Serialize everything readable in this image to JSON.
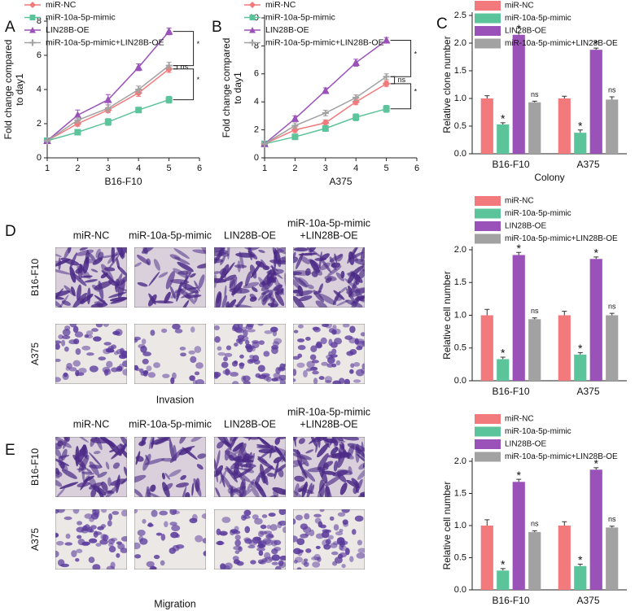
{
  "panel_labels": [
    "A",
    "B",
    "C",
    "D",
    "E"
  ],
  "chart_data": [
    {
      "type": "line",
      "x_label": "B16-F10",
      "y_label": [
        "Fold change compared",
        "to day1"
      ],
      "x": [
        1,
        2,
        3,
        4,
        5
      ],
      "xlim": [
        1,
        6
      ],
      "xticks": [
        1,
        2,
        3,
        4,
        5,
        6
      ],
      "ylim": [
        0,
        8
      ],
      "yticks": [
        0,
        2,
        4,
        6,
        8
      ],
      "series": [
        {
          "name": "miR-NC",
          "color": "#f27a7c",
          "marker": "diamond",
          "values": [
            1,
            2.0,
            2.8,
            3.8,
            5.2
          ],
          "errors": [
            0.05,
            0.15,
            0.15,
            0.2,
            0.2
          ]
        },
        {
          "name": "miR-10a-5p-mimic",
          "color": "#5cc49a",
          "marker": "square",
          "values": [
            1,
            1.5,
            2.1,
            2.8,
            3.4
          ],
          "errors": [
            0.05,
            0.15,
            0.2,
            0.15,
            0.2
          ]
        },
        {
          "name": "LIN28B-OE",
          "color": "#9b52b8",
          "marker": "triangle",
          "values": [
            1,
            2.5,
            3.4,
            5.3,
            7.4
          ],
          "errors": [
            0.05,
            0.3,
            0.3,
            0.2,
            0.2
          ]
        },
        {
          "name": "miR-10a-5p-mimic+LIN28B-OE",
          "color": "#a2a2a2",
          "marker": "plus",
          "values": [
            1,
            2.2,
            2.9,
            4.0,
            5.4
          ],
          "errors": [
            0.05,
            0.15,
            0.2,
            0.2,
            0.2
          ]
        }
      ],
      "annotations": [
        "*",
        "ns",
        "*"
      ]
    },
    {
      "type": "line",
      "x_label": "A375",
      "y_label": [
        "Fold change compared",
        "to day1"
      ],
      "x": [
        1,
        2,
        3,
        4,
        5
      ],
      "xlim": [
        1,
        6
      ],
      "xticks": [
        1,
        2,
        3,
        4,
        5,
        6
      ],
      "ylim": [
        0,
        10
      ],
      "yticks": [
        0,
        2,
        4,
        6,
        8,
        10
      ],
      "series": [
        {
          "name": "miR-NC",
          "color": "#f27a7c",
          "marker": "diamond",
          "values": [
            1,
            2.0,
            2.5,
            4.0,
            5.3
          ],
          "errors": [
            0.05,
            0.2,
            0.2,
            0.2,
            0.2
          ]
        },
        {
          "name": "miR-10a-5p-mimic",
          "color": "#5cc49a",
          "marker": "square",
          "values": [
            1,
            1.5,
            2.1,
            2.9,
            3.5
          ],
          "errors": [
            0.05,
            0.15,
            0.2,
            0.25,
            0.25
          ]
        },
        {
          "name": "LIN28B-OE",
          "color": "#9b52b8",
          "marker": "triangle",
          "values": [
            1,
            2.8,
            4.8,
            6.8,
            8.4
          ],
          "errors": [
            0.05,
            0.2,
            0.2,
            0.25,
            0.2
          ]
        },
        {
          "name": "miR-10a-5p-mimic+LIN28B-OE",
          "color": "#a2a2a2",
          "marker": "plus",
          "values": [
            1,
            2.3,
            3.2,
            4.3,
            5.8
          ],
          "errors": [
            0.05,
            0.2,
            0.2,
            0.2,
            0.2
          ]
        }
      ],
      "annotations": [
        "*",
        "ns",
        "*"
      ]
    },
    {
      "type": "bar",
      "x_label": "Colony",
      "y_label": "Relative clone number",
      "categories": [
        "B16-F10",
        "A375"
      ],
      "ylim": [
        0,
        2.5
      ],
      "yticks": [
        {
          "value": 0,
          "label": "0.0"
        },
        0.5,
        {
          "value": 1,
          "label": "1.0"
        },
        1.5,
        {
          "value": 2,
          "label": "2.0"
        },
        2.5
      ],
      "series": [
        {
          "name": "miR-NC",
          "color": "#f27a7c",
          "values": [
            1.0,
            1.0
          ],
          "errors": [
            0.05,
            0.04
          ]
        },
        {
          "name": "miR-10a-5p-mimic",
          "color": "#5cc49a",
          "values": [
            0.53,
            0.38
          ],
          "errors": [
            0.03,
            0.05
          ],
          "sig": [
            "*",
            "*"
          ]
        },
        {
          "name": "LIN28B-OE",
          "color": "#9b52b8",
          "values": [
            2.15,
            1.88
          ],
          "errors": [
            0.04,
            0.03
          ],
          "sig": [
            "*",
            "*"
          ]
        },
        {
          "name": "miR-10a-5p-mimic+LIN28B-OE",
          "color": "#a2a2a2",
          "values": [
            0.93,
            0.98
          ],
          "errors": [
            0.02,
            0.05
          ],
          "sig": [
            "ns",
            "ns"
          ]
        }
      ]
    },
    {
      "type": "bar",
      "y_label": "Relative cell number",
      "categories": [
        "B16-F10",
        "A375"
      ],
      "ylim": [
        0,
        2.0
      ],
      "yticks": [
        {
          "value": 0,
          "label": "0.0"
        },
        0.5,
        {
          "value": 1,
          "label": "1.0"
        },
        1.5,
        {
          "value": 2,
          "label": "2.0"
        }
      ],
      "series": [
        {
          "name": "miR-NC",
          "color": "#f27a7c",
          "values": [
            1.0,
            1.0
          ],
          "errors": [
            0.09,
            0.06
          ]
        },
        {
          "name": "miR-10a-5p-mimic",
          "color": "#5cc49a",
          "values": [
            0.33,
            0.4
          ],
          "errors": [
            0.03,
            0.03
          ],
          "sig": [
            "*",
            "*"
          ]
        },
        {
          "name": "LIN28B-OE",
          "color": "#9b52b8",
          "values": [
            1.92,
            1.86
          ],
          "errors": [
            0.04,
            0.03
          ],
          "sig": [
            "*",
            "*"
          ]
        },
        {
          "name": "miR-10a-5p-mimic+LIN28B-OE",
          "color": "#a2a2a2",
          "values": [
            0.94,
            1.0
          ],
          "errors": [
            0.02,
            0.03
          ],
          "sig": [
            "ns",
            "ns"
          ]
        }
      ]
    },
    {
      "type": "bar",
      "y_label": "Relative cell number",
      "categories": [
        "B16-F10",
        "A375"
      ],
      "ylim": [
        0,
        2.0
      ],
      "yticks": [
        {
          "value": 0,
          "label": "0.0"
        },
        0.5,
        {
          "value": 1,
          "label": "1.0"
        },
        1.5,
        {
          "value": 2,
          "label": "2.0"
        }
      ],
      "series": [
        {
          "name": "miR-NC",
          "color": "#f27a7c",
          "values": [
            1.0,
            1.0
          ],
          "errors": [
            0.09,
            0.06
          ]
        },
        {
          "name": "miR-10a-5p-mimic",
          "color": "#5cc49a",
          "values": [
            0.3,
            0.37
          ],
          "errors": [
            0.03,
            0.03
          ],
          "sig": [
            "*",
            "*"
          ]
        },
        {
          "name": "LIN28B-OE",
          "color": "#9b52b8",
          "values": [
            1.68,
            1.87
          ],
          "errors": [
            0.04,
            0.03
          ],
          "sig": [
            "*",
            "*"
          ]
        },
        {
          "name": "miR-10a-5p-mimic+LIN28B-OE",
          "color": "#a2a2a2",
          "values": [
            0.9,
            0.97
          ],
          "errors": [
            0.02,
            0.02
          ],
          "sig": [
            "ns",
            "ns"
          ]
        }
      ]
    }
  ],
  "image_grids": [
    {
      "columns": [
        [
          "miR-NC"
        ],
        [
          "miR-10a-5p-mimic"
        ],
        [
          "LIN28B-OE"
        ],
        [
          "miR-10a-5p-mimic",
          "+LIN28B-OE"
        ]
      ],
      "rows": [
        "B16-F10",
        "A375"
      ],
      "caption": "Invasion"
    },
    {
      "columns": [
        [
          "miR-NC"
        ],
        [
          "miR-10a-5p-mimic"
        ],
        [
          "LIN28B-OE"
        ],
        [
          "miR-10a-5p-mimic",
          "+LIN28B-OE"
        ]
      ],
      "rows": [
        "B16-F10",
        "A375"
      ],
      "caption": "Migration"
    }
  ]
}
